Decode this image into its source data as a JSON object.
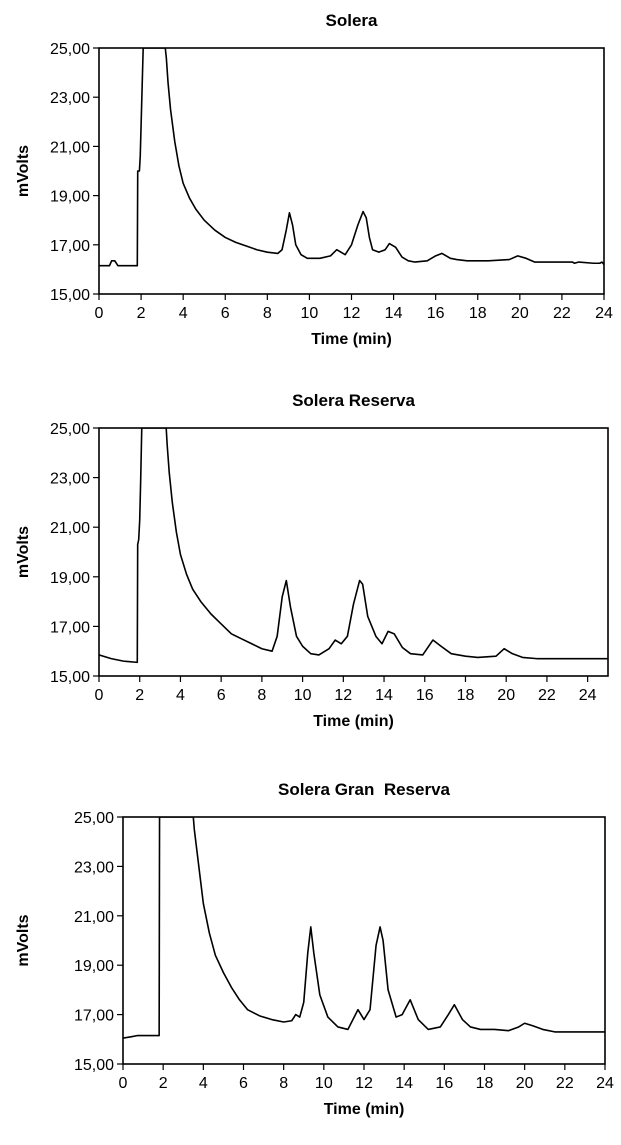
{
  "chart_data": [
    {
      "type": "line",
      "title": "Solera",
      "xlabel": "Time (min)",
      "ylabel": "mVolts",
      "xlim": [
        0,
        24
      ],
      "ylim": [
        15,
        25
      ],
      "x_ticks": [
        0,
        2,
        4,
        6,
        8,
        10,
        12,
        14,
        16,
        18,
        20,
        22,
        24
      ],
      "x_tick_labels": [
        "0",
        "2",
        "4",
        "6",
        "8",
        "10",
        "12",
        "14",
        "16",
        "18",
        "20",
        "22",
        "24"
      ],
      "y_ticks": [
        15,
        17,
        19,
        21,
        23,
        25
      ],
      "y_tick_labels": [
        "15,00",
        "17,00",
        "19,00",
        "21,00",
        "23,00",
        "25,00"
      ],
      "grid": false,
      "series": [
        {
          "x": [
            0,
            0.5,
            0.6,
            0.75,
            0.9,
            1.82,
            1.84,
            1.92,
            1.96,
            2.1,
            3.15,
            3.2,
            3.28,
            3.4,
            3.6,
            3.8,
            4.0,
            4.3,
            4.6,
            5.0,
            5.5,
            6.0,
            6.5,
            7.0,
            7.5,
            8.0,
            8.5,
            8.7,
            8.9,
            9.05,
            9.2,
            9.35,
            9.6,
            9.9,
            10.2,
            10.5,
            11.0,
            11.3,
            11.5,
            11.7,
            12.0,
            12.3,
            12.55,
            12.7,
            12.85,
            13.0,
            13.3,
            13.6,
            13.8,
            14.1,
            14.4,
            14.7,
            15.0,
            15.6,
            16.0,
            16.3,
            16.7,
            17.0,
            17.5,
            18.5,
            19.5,
            19.9,
            20.3,
            20.7,
            21.5,
            22.5,
            22.6,
            22.8,
            23.5,
            23.8,
            23.9,
            24.0
          ],
          "values": [
            16.15,
            16.15,
            16.35,
            16.35,
            16.15,
            16.15,
            20.0,
            20.0,
            20.6,
            25.0,
            25.0,
            24.6,
            23.6,
            22.5,
            21.2,
            20.2,
            19.5,
            18.9,
            18.45,
            18.0,
            17.6,
            17.3,
            17.1,
            16.95,
            16.8,
            16.7,
            16.65,
            16.8,
            17.6,
            18.3,
            17.8,
            17.0,
            16.6,
            16.45,
            16.45,
            16.45,
            16.55,
            16.8,
            16.7,
            16.6,
            17.0,
            17.8,
            18.35,
            18.1,
            17.3,
            16.8,
            16.7,
            16.8,
            17.05,
            16.9,
            16.5,
            16.35,
            16.3,
            16.35,
            16.55,
            16.65,
            16.45,
            16.4,
            16.35,
            16.35,
            16.4,
            16.55,
            16.45,
            16.3,
            16.3,
            16.3,
            16.25,
            16.3,
            16.25,
            16.25,
            16.3,
            16.2
          ]
        }
      ]
    },
    {
      "type": "line",
      "title": "Solera Reserva",
      "xlabel": "Time (min)",
      "ylabel": "mVolts",
      "xlim": [
        0,
        25
      ],
      "ylim": [
        15,
        25
      ],
      "x_ticks": [
        0,
        2,
        4,
        6,
        8,
        10,
        12,
        14,
        16,
        18,
        20,
        22,
        24
      ],
      "x_tick_labels": [
        "0",
        "2",
        "4",
        "6",
        "8",
        "10",
        "12",
        "14",
        "16",
        "18",
        "20",
        "22",
        "24"
      ],
      "y_ticks": [
        15,
        17,
        19,
        21,
        23,
        25
      ],
      "y_tick_labels": [
        "15,00",
        "17,00",
        "19,00",
        "21,00",
        "23,00",
        "25,00"
      ],
      "grid": false,
      "series": [
        {
          "x": [
            0,
            0.6,
            1.2,
            1.88,
            1.9,
            1.95,
            2.0,
            2.05,
            2.1,
            3.3,
            3.35,
            3.45,
            3.6,
            3.8,
            4.0,
            4.3,
            4.6,
            5.0,
            5.5,
            6.0,
            6.5,
            7.0,
            7.5,
            8.0,
            8.5,
            8.75,
            9.0,
            9.2,
            9.4,
            9.7,
            10.0,
            10.4,
            10.8,
            11.3,
            11.6,
            11.9,
            12.2,
            12.5,
            12.8,
            12.95,
            13.2,
            13.6,
            13.9,
            14.2,
            14.5,
            14.9,
            15.3,
            15.9,
            16.4,
            16.8,
            17.3,
            18.0,
            18.6,
            19.5,
            19.9,
            20.3,
            20.8,
            21.5,
            22.5,
            25.0
          ],
          "values": [
            15.85,
            15.7,
            15.6,
            15.55,
            20.3,
            20.5,
            21.3,
            23.0,
            25.0,
            25.0,
            24.3,
            23.2,
            22.0,
            20.8,
            19.9,
            19.1,
            18.5,
            18.0,
            17.5,
            17.1,
            16.7,
            16.5,
            16.3,
            16.1,
            16.0,
            16.6,
            18.2,
            18.85,
            17.8,
            16.6,
            16.2,
            15.9,
            15.85,
            16.1,
            16.45,
            16.3,
            16.6,
            17.9,
            18.85,
            18.7,
            17.4,
            16.6,
            16.3,
            16.8,
            16.7,
            16.15,
            15.9,
            15.85,
            16.45,
            16.2,
            15.9,
            15.8,
            15.75,
            15.8,
            16.1,
            15.9,
            15.75,
            15.7,
            15.7,
            15.7
          ]
        }
      ]
    },
    {
      "type": "line",
      "title": "Solera Gran  Reserva",
      "xlabel": "Time (min)",
      "ylabel": "mVolts",
      "xlim": [
        0,
        24
      ],
      "ylim": [
        15,
        25
      ],
      "x_ticks": [
        0,
        2,
        4,
        6,
        8,
        10,
        12,
        14,
        16,
        18,
        20,
        22,
        24
      ],
      "x_tick_labels": [
        "0",
        "2",
        "4",
        "6",
        "8",
        "10",
        "12",
        "14",
        "16",
        "18",
        "20",
        "22",
        "24"
      ],
      "y_ticks": [
        15,
        17,
        19,
        21,
        23,
        25
      ],
      "y_tick_labels": [
        "15,00",
        "17,00",
        "19,00",
        "21,00",
        "23,00",
        "25,00"
      ],
      "grid": false,
      "series": [
        {
          "x": [
            0,
            0.4,
            0.7,
            1.8,
            1.82,
            1.86,
            3.5,
            3.55,
            3.7,
            3.85,
            4.0,
            4.3,
            4.6,
            5.0,
            5.4,
            5.8,
            6.2,
            6.8,
            7.4,
            8.0,
            8.4,
            8.6,
            8.8,
            9.0,
            9.2,
            9.35,
            9.5,
            9.8,
            10.2,
            10.7,
            11.2,
            11.7,
            12.0,
            12.3,
            12.6,
            12.8,
            12.95,
            13.2,
            13.6,
            13.9,
            14.3,
            14.7,
            15.2,
            15.8,
            16.2,
            16.5,
            16.9,
            17.3,
            17.8,
            18.5,
            19.2,
            19.7,
            20.0,
            20.4,
            20.9,
            21.5,
            22.5,
            24.0
          ],
          "values": [
            16.05,
            16.1,
            16.15,
            16.15,
            25.0,
            25.0,
            25.0,
            24.5,
            23.5,
            22.5,
            21.5,
            20.3,
            19.4,
            18.7,
            18.1,
            17.6,
            17.2,
            16.95,
            16.8,
            16.7,
            16.75,
            17.0,
            16.9,
            17.5,
            19.5,
            20.55,
            19.5,
            17.8,
            16.9,
            16.5,
            16.4,
            17.2,
            16.8,
            17.2,
            19.8,
            20.55,
            20.0,
            18.0,
            16.9,
            17.0,
            17.6,
            16.8,
            16.4,
            16.5,
            17.0,
            17.4,
            16.8,
            16.5,
            16.4,
            16.4,
            16.35,
            16.5,
            16.65,
            16.55,
            16.4,
            16.3,
            16.3,
            16.3
          ]
        }
      ]
    }
  ]
}
